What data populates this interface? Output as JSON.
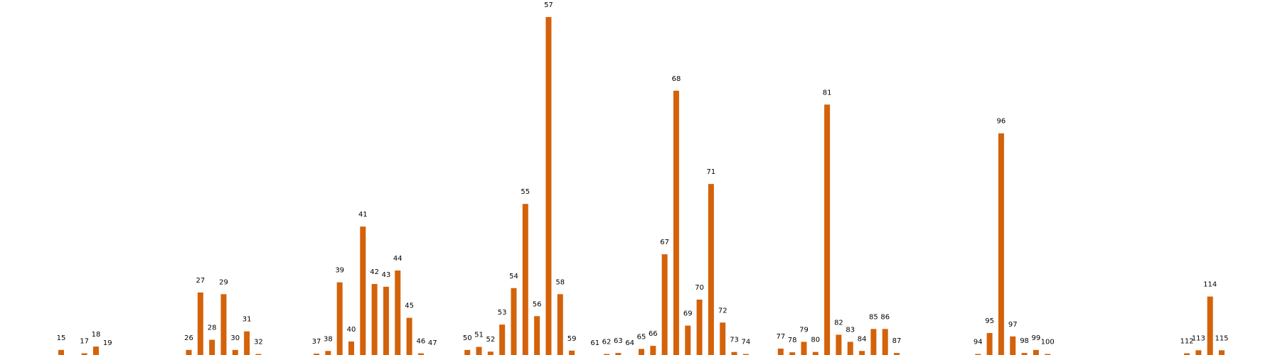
{
  "colors": {
    "bar": "#d4620a",
    "background": "#ffffff",
    "label": "#000000"
  },
  "chart_data": {
    "type": "bar",
    "title": "",
    "xlabel": "",
    "ylabel": "",
    "ylim": [
      0,
      100
    ],
    "grid": false,
    "categories": [
      "15",
      "17",
      "18",
      "19",
      "26",
      "27",
      "28",
      "29",
      "30",
      "31",
      "32",
      "37",
      "38",
      "39",
      "40",
      "41",
      "42",
      "43",
      "44",
      "45",
      "46",
      "47",
      "50",
      "51",
      "52",
      "53",
      "54",
      "55",
      "56",
      "57",
      "58",
      "59",
      "61",
      "62",
      "63",
      "64",
      "65",
      "66",
      "67",
      "68",
      "69",
      "70",
      "71",
      "72",
      "73",
      "74",
      "77",
      "78",
      "79",
      "80",
      "81",
      "82",
      "83",
      "84",
      "85",
      "86",
      "87",
      "94",
      "95",
      "96",
      "97",
      "98",
      "99",
      "100",
      "112",
      "113",
      "114",
      "115"
    ],
    "positions": [
      15,
      17,
      18,
      19,
      26,
      27,
      28,
      29,
      30,
      31,
      32,
      37,
      38,
      39,
      40,
      41,
      42,
      43,
      44,
      45,
      46,
      47,
      50,
      51,
      52,
      53,
      54,
      55,
      56,
      57,
      58,
      59,
      61,
      62,
      63,
      64,
      65,
      66,
      67,
      68,
      69,
      70,
      71,
      72,
      73,
      74,
      77,
      78,
      79,
      80,
      81,
      82,
      83,
      84,
      85,
      86,
      87,
      94,
      95,
      96,
      97,
      98,
      99,
      100,
      112,
      113,
      114,
      115
    ],
    "values": [
      1.5,
      0.5,
      2.5,
      0,
      1.5,
      18.5,
      4.5,
      18,
      1.5,
      7,
      0.3,
      0.4,
      1.2,
      21.5,
      4,
      38,
      21,
      20.2,
      25,
      11,
      0.5,
      0,
      1.5,
      2.4,
      1,
      9,
      19.8,
      44.7,
      11.5,
      100,
      18,
      1.3,
      0,
      0.3,
      0.6,
      0,
      1.8,
      2.7,
      29.8,
      78.2,
      8.7,
      16.4,
      50.6,
      9.6,
      0.9,
      0.3,
      1.9,
      0.8,
      3.9,
      0.9,
      74.1,
      6,
      3.9,
      1.2,
      7.7,
      7.7,
      0.6,
      0.3,
      6.5,
      65.6,
      5.5,
      0.6,
      1.5,
      0.3,
      0.5,
      1.4,
      17.3,
      1.4
    ]
  }
}
